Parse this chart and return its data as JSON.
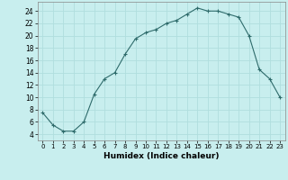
{
  "x": [
    0,
    1,
    2,
    3,
    4,
    5,
    6,
    7,
    8,
    9,
    10,
    11,
    12,
    13,
    14,
    15,
    16,
    17,
    18,
    19,
    20,
    21,
    22,
    23
  ],
  "y": [
    7.5,
    5.5,
    4.5,
    4.5,
    6.0,
    10.5,
    13.0,
    14.0,
    17.0,
    19.5,
    20.5,
    21.0,
    22.0,
    22.5,
    23.5,
    24.5,
    24.0,
    24.0,
    23.5,
    23.0,
    20.0,
    14.5,
    13.0,
    10.0
  ],
  "title": "",
  "xlabel": "Humidex (Indice chaleur)",
  "ylabel": "",
  "xlim": [
    -0.5,
    23.5
  ],
  "ylim": [
    3.0,
    25.5
  ],
  "yticks": [
    4,
    6,
    8,
    10,
    12,
    14,
    16,
    18,
    20,
    22,
    24
  ],
  "xticks": [
    0,
    1,
    2,
    3,
    4,
    5,
    6,
    7,
    8,
    9,
    10,
    11,
    12,
    13,
    14,
    15,
    16,
    17,
    18,
    19,
    20,
    21,
    22,
    23
  ],
  "line_color": "#2e6b6b",
  "bg_color": "#c8eeee",
  "grid_color": "#b0dede",
  "marker": "+",
  "marker_size": 3.5,
  "linewidth": 0.8
}
